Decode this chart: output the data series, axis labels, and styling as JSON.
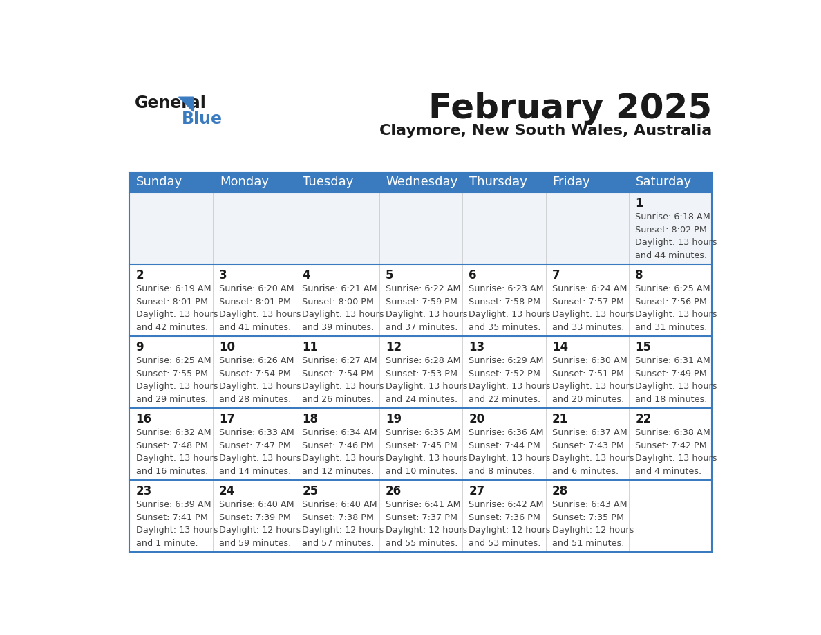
{
  "title": "February 2025",
  "subtitle": "Claymore, New South Wales, Australia",
  "header_bg_color": "#3a7bbf",
  "header_text_color": "#ffffff",
  "bg_color": "#ffffff",
  "cell_bg_color": "#ffffff",
  "first_row_bg_color": "#f0f4f8",
  "border_color": "#3a7bbf",
  "day_headers": [
    "Sunday",
    "Monday",
    "Tuesday",
    "Wednesday",
    "Thursday",
    "Friday",
    "Saturday"
  ],
  "title_color": "#1a1a1a",
  "subtitle_color": "#1a1a1a",
  "number_color": "#1a1a1a",
  "info_color": "#444444",
  "logo_black": "#1a1a1a",
  "logo_blue": "#3a7bbf",
  "calendar_data": [
    [
      {
        "day": null,
        "info": null
      },
      {
        "day": null,
        "info": null
      },
      {
        "day": null,
        "info": null
      },
      {
        "day": null,
        "info": null
      },
      {
        "day": null,
        "info": null
      },
      {
        "day": null,
        "info": null
      },
      {
        "day": 1,
        "info": "Sunrise: 6:18 AM\nSunset: 8:02 PM\nDaylight: 13 hours\nand 44 minutes."
      }
    ],
    [
      {
        "day": 2,
        "info": "Sunrise: 6:19 AM\nSunset: 8:01 PM\nDaylight: 13 hours\nand 42 minutes."
      },
      {
        "day": 3,
        "info": "Sunrise: 6:20 AM\nSunset: 8:01 PM\nDaylight: 13 hours\nand 41 minutes."
      },
      {
        "day": 4,
        "info": "Sunrise: 6:21 AM\nSunset: 8:00 PM\nDaylight: 13 hours\nand 39 minutes."
      },
      {
        "day": 5,
        "info": "Sunrise: 6:22 AM\nSunset: 7:59 PM\nDaylight: 13 hours\nand 37 minutes."
      },
      {
        "day": 6,
        "info": "Sunrise: 6:23 AM\nSunset: 7:58 PM\nDaylight: 13 hours\nand 35 minutes."
      },
      {
        "day": 7,
        "info": "Sunrise: 6:24 AM\nSunset: 7:57 PM\nDaylight: 13 hours\nand 33 minutes."
      },
      {
        "day": 8,
        "info": "Sunrise: 6:25 AM\nSunset: 7:56 PM\nDaylight: 13 hours\nand 31 minutes."
      }
    ],
    [
      {
        "day": 9,
        "info": "Sunrise: 6:25 AM\nSunset: 7:55 PM\nDaylight: 13 hours\nand 29 minutes."
      },
      {
        "day": 10,
        "info": "Sunrise: 6:26 AM\nSunset: 7:54 PM\nDaylight: 13 hours\nand 28 minutes."
      },
      {
        "day": 11,
        "info": "Sunrise: 6:27 AM\nSunset: 7:54 PM\nDaylight: 13 hours\nand 26 minutes."
      },
      {
        "day": 12,
        "info": "Sunrise: 6:28 AM\nSunset: 7:53 PM\nDaylight: 13 hours\nand 24 minutes."
      },
      {
        "day": 13,
        "info": "Sunrise: 6:29 AM\nSunset: 7:52 PM\nDaylight: 13 hours\nand 22 minutes."
      },
      {
        "day": 14,
        "info": "Sunrise: 6:30 AM\nSunset: 7:51 PM\nDaylight: 13 hours\nand 20 minutes."
      },
      {
        "day": 15,
        "info": "Sunrise: 6:31 AM\nSunset: 7:49 PM\nDaylight: 13 hours\nand 18 minutes."
      }
    ],
    [
      {
        "day": 16,
        "info": "Sunrise: 6:32 AM\nSunset: 7:48 PM\nDaylight: 13 hours\nand 16 minutes."
      },
      {
        "day": 17,
        "info": "Sunrise: 6:33 AM\nSunset: 7:47 PM\nDaylight: 13 hours\nand 14 minutes."
      },
      {
        "day": 18,
        "info": "Sunrise: 6:34 AM\nSunset: 7:46 PM\nDaylight: 13 hours\nand 12 minutes."
      },
      {
        "day": 19,
        "info": "Sunrise: 6:35 AM\nSunset: 7:45 PM\nDaylight: 13 hours\nand 10 minutes."
      },
      {
        "day": 20,
        "info": "Sunrise: 6:36 AM\nSunset: 7:44 PM\nDaylight: 13 hours\nand 8 minutes."
      },
      {
        "day": 21,
        "info": "Sunrise: 6:37 AM\nSunset: 7:43 PM\nDaylight: 13 hours\nand 6 minutes."
      },
      {
        "day": 22,
        "info": "Sunrise: 6:38 AM\nSunset: 7:42 PM\nDaylight: 13 hours\nand 4 minutes."
      }
    ],
    [
      {
        "day": 23,
        "info": "Sunrise: 6:39 AM\nSunset: 7:41 PM\nDaylight: 13 hours\nand 1 minute."
      },
      {
        "day": 24,
        "info": "Sunrise: 6:40 AM\nSunset: 7:39 PM\nDaylight: 12 hours\nand 59 minutes."
      },
      {
        "day": 25,
        "info": "Sunrise: 6:40 AM\nSunset: 7:38 PM\nDaylight: 12 hours\nand 57 minutes."
      },
      {
        "day": 26,
        "info": "Sunrise: 6:41 AM\nSunset: 7:37 PM\nDaylight: 12 hours\nand 55 minutes."
      },
      {
        "day": 27,
        "info": "Sunrise: 6:42 AM\nSunset: 7:36 PM\nDaylight: 12 hours\nand 53 minutes."
      },
      {
        "day": 28,
        "info": "Sunrise: 6:43 AM\nSunset: 7:35 PM\nDaylight: 12 hours\nand 51 minutes."
      },
      {
        "day": null,
        "info": null
      }
    ]
  ]
}
